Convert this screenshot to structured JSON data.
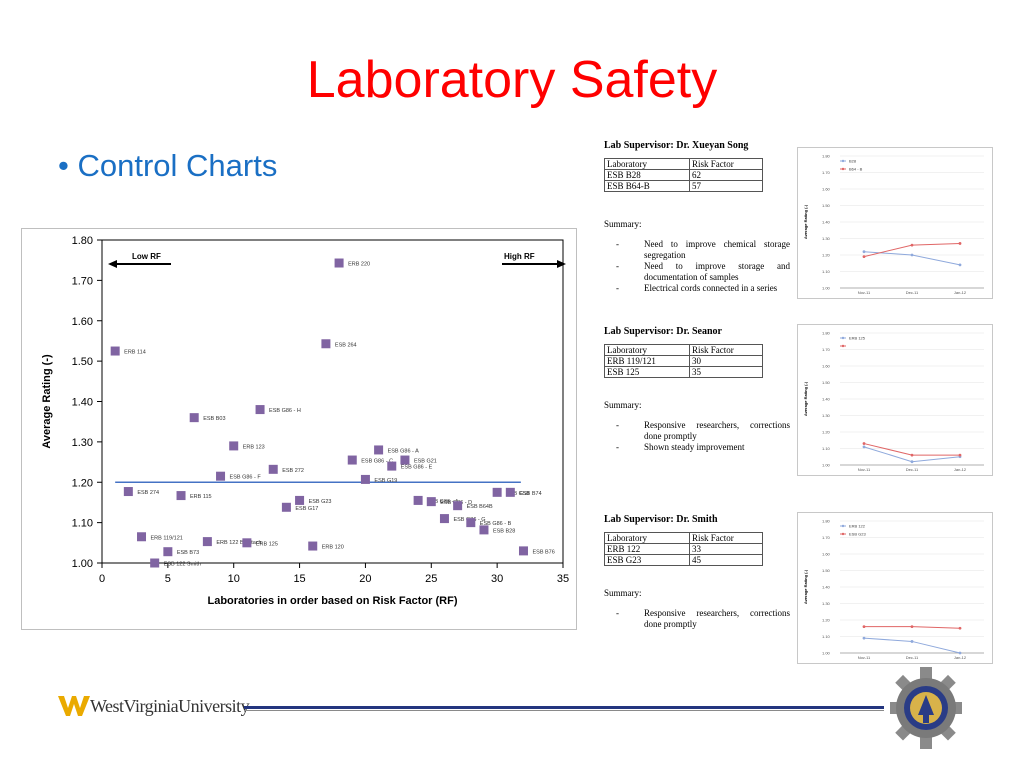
{
  "slide": {
    "title": "Laboratory Safety",
    "bullet": "Control Charts"
  },
  "colors": {
    "title": "#ff0000",
    "bullet": "#1a6fc4",
    "point": "#8064a2",
    "control_line": "#4472c4",
    "mini_blue": "#8fa9dc",
    "mini_red": "#e06666",
    "footer_blue": "#23357f"
  },
  "chart_data": {
    "type": "scatter",
    "xlabel": "Laboratories in order based on Risk Factor (RF)",
    "ylabel": "Average Rating (-)",
    "xlim": [
      0,
      35
    ],
    "ylim": [
      1.0,
      1.8
    ],
    "x_ticks": [
      "0",
      "5",
      "10",
      "15",
      "20",
      "25",
      "30",
      "35"
    ],
    "y_ticks": [
      "1.00",
      "1.10",
      "1.20",
      "1.30",
      "1.40",
      "1.50",
      "1.60",
      "1.70",
      "1.80"
    ],
    "control_line_y": 1.2,
    "annotations": {
      "low": "Low RF",
      "high": "High RF"
    },
    "points": [
      {
        "x": 1,
        "y": 1.525,
        "label": "ERB 114"
      },
      {
        "x": 2,
        "y": 1.177,
        "label": "ESB 274"
      },
      {
        "x": 3,
        "y": 1.065,
        "label": "ERB 119/121"
      },
      {
        "x": 4,
        "y": 1.0,
        "label": "ESB 122 Smith"
      },
      {
        "x": 5,
        "y": 1.028,
        "label": "ESB B73"
      },
      {
        "x": 6,
        "y": 1.167,
        "label": "ERB 115"
      },
      {
        "x": 7,
        "y": 1.36,
        "label": "ESB B03"
      },
      {
        "x": 8,
        "y": 1.053,
        "label": "ERB 122 Bhattach"
      },
      {
        "x": 9,
        "y": 1.215,
        "label": "ESB G86 - F"
      },
      {
        "x": 10,
        "y": 1.29,
        "label": "ERB 123"
      },
      {
        "x": 11,
        "y": 1.05,
        "label": "ERB 125"
      },
      {
        "x": 12,
        "y": 1.38,
        "label": "ESB G86 - H"
      },
      {
        "x": 13,
        "y": 1.232,
        "label": "ESB 272"
      },
      {
        "x": 14,
        "y": 1.138,
        "label": "ESB G17"
      },
      {
        "x": 15,
        "y": 1.155,
        "label": "ESB G23"
      },
      {
        "x": 16,
        "y": 1.042,
        "label": "ERB 120"
      },
      {
        "x": 17,
        "y": 1.543,
        "label": "ESB 264"
      },
      {
        "x": 18,
        "y": 1.743,
        "label": "ERB 220"
      },
      {
        "x": 19,
        "y": 1.255,
        "label": "ESB G86 - C"
      },
      {
        "x": 20,
        "y": 1.207,
        "label": "ESB G19"
      },
      {
        "x": 21,
        "y": 1.28,
        "label": "ESB G86 - A"
      },
      {
        "x": 22,
        "y": 1.24,
        "label": "ESB G86 - E"
      },
      {
        "x": 23,
        "y": 1.255,
        "label": "ESB G21"
      },
      {
        "x": 24,
        "y": 1.155,
        "label": "ESB G86 - J"
      },
      {
        "x": 25,
        "y": 1.152,
        "label": "ESB G86 - D"
      },
      {
        "x": 26,
        "y": 1.11,
        "label": "ESB G86 - G"
      },
      {
        "x": 27,
        "y": 1.142,
        "label": "ESB B64B"
      },
      {
        "x": 28,
        "y": 1.1,
        "label": "ESB G86 - B"
      },
      {
        "x": 29,
        "y": 1.082,
        "label": "ESB B28"
      },
      {
        "x": 30,
        "y": 1.175,
        "label": "ESB G58"
      },
      {
        "x": 31,
        "y": 1.175,
        "label": "ESB B74"
      },
      {
        "x": 32,
        "y": 1.03,
        "label": "ESB B76"
      }
    ]
  },
  "panels": [
    {
      "supervisor": "Lab Supervisor:  Dr. Xueyan Song",
      "table_header": [
        "Laboratory",
        "Risk Factor"
      ],
      "rows": [
        [
          "ESB B28",
          "62"
        ],
        [
          "ESB B64-B",
          "57"
        ]
      ],
      "summary_label": "Summary:",
      "items": [
        "Need to improve chemical storage segregation",
        "Need to improve storage and documentation of samples",
        "Electrical cords connected in a series"
      ],
      "mini_chart": {
        "ylabel": "Average Rating (-)",
        "y_ticks": [
          "1.00",
          "1.10",
          "1.20",
          "1.30",
          "1.40",
          "1.50",
          "1.60",
          "1.70",
          "1.80"
        ],
        "ylim": [
          1.0,
          1.8
        ],
        "categories": [
          "Nov-11",
          "Dec-11",
          "Jan-12"
        ],
        "series": [
          {
            "name": "B28",
            "values": [
              1.22,
              1.2,
              1.14
            ]
          },
          {
            "name": "B64 - B",
            "values": [
              1.19,
              1.26,
              1.27
            ]
          }
        ]
      }
    },
    {
      "supervisor": "Lab Supervisor:  Dr. Seanor",
      "table_header": [
        "Laboratory",
        "Risk Factor"
      ],
      "rows": [
        [
          "ERB 119/121",
          "30"
        ],
        [
          "ESB 125",
          "35"
        ]
      ],
      "summary_label": "Summary:",
      "items": [
        "Responsive researchers, corrections done promptly",
        "Shown steady improvement"
      ],
      "mini_chart": {
        "ylabel": "Average Rating (-)",
        "y_ticks": [
          "1.00",
          "1.10",
          "1.20",
          "1.30",
          "1.40",
          "1.50",
          "1.60",
          "1.70",
          "1.80"
        ],
        "ylim": [
          1.0,
          1.8
        ],
        "categories": [
          "Nov-11",
          "Dec-11",
          "Jan-12"
        ],
        "series": [
          {
            "name": "ERB 125",
            "values": [
              1.11,
              1.02,
              1.05
            ]
          },
          {
            "name": "",
            "values": [
              1.13,
              1.06,
              1.06
            ]
          }
        ]
      }
    },
    {
      "supervisor": "Lab Supervisor:  Dr. Smith",
      "table_header": [
        "Laboratory",
        "Risk Factor"
      ],
      "rows": [
        [
          "ERB 122",
          "33"
        ],
        [
          "ESB G23",
          "45"
        ]
      ],
      "summary_label": "Summary:",
      "items": [
        "Responsive researchers, corrections done promptly"
      ],
      "mini_chart": {
        "ylabel": "Average Rating (-)",
        "y_ticks": [
          "1.00",
          "1.10",
          "1.20",
          "1.30",
          "1.40",
          "1.50",
          "1.60",
          "1.70",
          "1.80"
        ],
        "ylim": [
          1.0,
          1.8
        ],
        "categories": [
          "Nov-11",
          "Dec-11",
          "Jan-12"
        ],
        "series": [
          {
            "name": "ERB 122",
            "values": [
              1.09,
              1.07,
              1.0
            ]
          },
          {
            "name": "ESB G23",
            "values": [
              1.16,
              1.16,
              1.15
            ]
          }
        ]
      }
    }
  ],
  "footer": {
    "university": "WestVirginiaUniversity",
    "logo_icon": "wvu-flying-wv-icon",
    "seal_icon": "gear-seal-icon"
  }
}
